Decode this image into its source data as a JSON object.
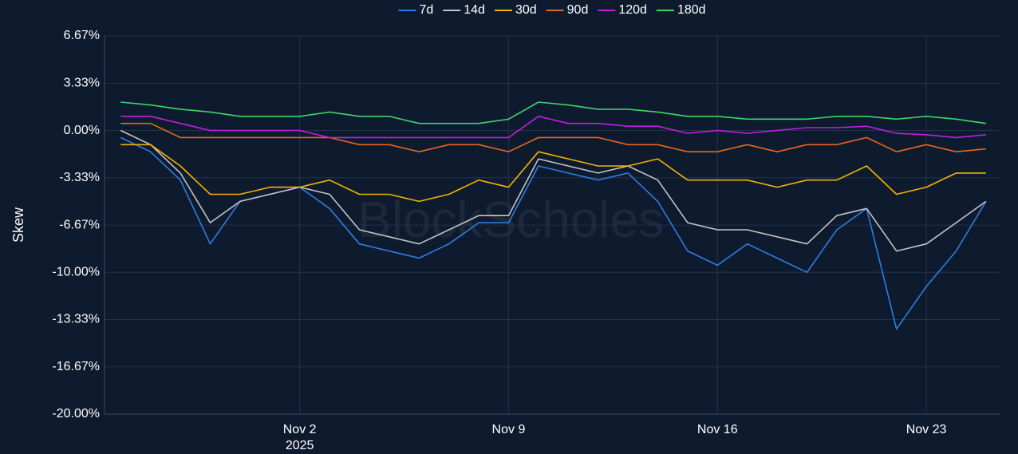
{
  "chart_data": {
    "type": "line",
    "y_label": "Skew",
    "watermark": "BlockScholes",
    "x": [
      "2025-10-27",
      "2025-10-28",
      "2025-10-29",
      "2025-10-30",
      "2025-10-31",
      "2025-11-01",
      "2025-11-02",
      "2025-11-03",
      "2025-11-04",
      "2025-11-05",
      "2025-11-06",
      "2025-11-07",
      "2025-11-08",
      "2025-11-09",
      "2025-11-10",
      "2025-11-11",
      "2025-11-12",
      "2025-11-13",
      "2025-11-14",
      "2025-11-15",
      "2025-11-16",
      "2025-11-17",
      "2025-11-18",
      "2025-11-19",
      "2025-11-20",
      "2025-11-21",
      "2025-11-22",
      "2025-11-23",
      "2025-11-24",
      "2025-11-25"
    ],
    "series": [
      {
        "name": "7d",
        "color": "#2f7de1",
        "values": [
          -0.5,
          -1.5,
          -3.5,
          -8,
          -5,
          -4.5,
          -4,
          -5.5,
          -8,
          -8.5,
          -9,
          -8,
          -6.5,
          -6.5,
          -2.5,
          -3,
          -3.5,
          -3,
          -5,
          -8.5,
          -9.5,
          -8,
          -9,
          -10,
          -7,
          -5.5,
          -14,
          -11,
          -8.5,
          -5
        ]
      },
      {
        "name": "14d",
        "color": "#c4c4c4",
        "values": [
          0,
          -1,
          -3,
          -6.5,
          -5,
          -4.5,
          -4,
          -4.5,
          -7,
          -7.5,
          -8,
          -7,
          -6,
          -6,
          -2,
          -2.5,
          -3,
          -2.5,
          -3.5,
          -6.5,
          -7,
          -7,
          -7.5,
          -8,
          -6,
          -5.5,
          -8.5,
          -8,
          -6.5,
          -5
        ]
      },
      {
        "name": "30d",
        "color": "#f0b400",
        "values": [
          -1,
          -1,
          -2.5,
          -4.5,
          -4.5,
          -4,
          -4,
          -3.5,
          -4.5,
          -4.5,
          -5,
          -4.5,
          -3.5,
          -4,
          -1.5,
          -2,
          -2.5,
          -2.5,
          -2,
          -3.5,
          -3.5,
          -3.5,
          -4,
          -3.5,
          -3.5,
          -2.5,
          -4.5,
          -4,
          -3,
          -3
        ]
      },
      {
        "name": "90d",
        "color": "#e8661c",
        "values": [
          0.5,
          0.5,
          -0.5,
          -0.5,
          -0.5,
          -0.5,
          -0.5,
          -0.5,
          -1,
          -1,
          -1.5,
          -1,
          -1,
          -1.5,
          -0.5,
          -0.5,
          -0.5,
          -1,
          -1,
          -1.5,
          -1.5,
          -1,
          -1.5,
          -1,
          -1,
          -0.5,
          -1.5,
          -1,
          -1.5,
          -1.3
        ]
      },
      {
        "name": "120d",
        "color": "#c020e0",
        "values": [
          1,
          1,
          0.5,
          0,
          0,
          0,
          0,
          -0.5,
          -0.5,
          -0.5,
          -0.5,
          -0.5,
          -0.5,
          -0.5,
          1,
          0.5,
          0.5,
          0.3,
          0.3,
          -0.2,
          0,
          -0.2,
          0,
          0.2,
          0.2,
          0.3,
          -0.2,
          -0.3,
          -0.5,
          -0.3
        ]
      },
      {
        "name": "180d",
        "color": "#3fd46a",
        "values": [
          2,
          1.8,
          1.5,
          1.3,
          1,
          1,
          1,
          1.3,
          1,
          1,
          0.5,
          0.5,
          0.5,
          0.8,
          2,
          1.8,
          1.5,
          1.5,
          1.3,
          1,
          1,
          0.8,
          0.8,
          0.8,
          1,
          1,
          0.8,
          1,
          0.8,
          0.5
        ]
      }
    ],
    "xlim": [
      "2025-10-26T11:00:00Z",
      "2025-11-25T11:00:00Z"
    ],
    "xticks": [
      {
        "value": "2025-11-02",
        "label": "Nov 2\n2025"
      },
      {
        "value": "2025-11-09",
        "label": "Nov 9"
      },
      {
        "value": "2025-11-16",
        "label": "Nov 16"
      },
      {
        "value": "2025-11-23",
        "label": "Nov 23"
      }
    ],
    "ylim": [
      -20,
      6.67
    ],
    "yticks": [
      {
        "value": 6.67,
        "label": "6.67%"
      },
      {
        "value": 3.33,
        "label": "3.33%"
      },
      {
        "value": 0,
        "label": "0.00%"
      },
      {
        "value": -3.33,
        "label": "-3.33%"
      },
      {
        "value": -6.67,
        "label": "-6.67%"
      },
      {
        "value": -10,
        "label": "-10.00%"
      },
      {
        "value": -13.33,
        "label": "-13.33%"
      },
      {
        "value": -16.67,
        "label": "-16.67%"
      },
      {
        "value": -20,
        "label": "-20.00%"
      }
    ],
    "grid": true,
    "legend": "top"
  }
}
